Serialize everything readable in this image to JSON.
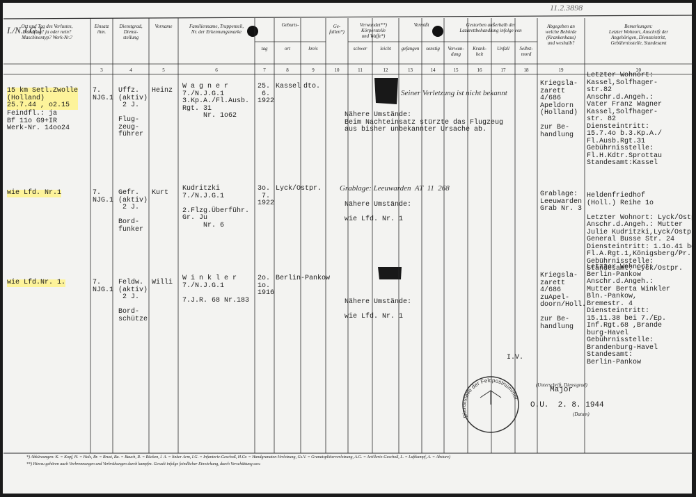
{
  "header": {
    "reference": "11.2.3898",
    "corner": "I./N.J.G.1"
  },
  "header_groups": [
    "Geburts-",
    "Verwundet**)\nKörperstelle\nund Waffe*)",
    "Vermißt",
    "Gestorben außerhalb der\nLazarettbehandlung infolge von"
  ],
  "columns": [
    {
      "label": "Ort und Tag des Verlustes,\nFeindflug? ja oder nein?\nMaschinentyp? Werk-Nr.?"
    },
    {
      "label": "Einsatz\nihm.",
      "number": "3"
    },
    {
      "label": "Dienstgrad,\nDienst-\nstellung",
      "number": "4"
    },
    {
      "label": "Vorname",
      "number": "5"
    },
    {
      "label": "Familienname, Truppenteil,\nNr. der Erkennungsmarke",
      "number": "6"
    },
    {
      "label": "tag",
      "number": "7"
    },
    {
      "label": "ort",
      "number": "8"
    },
    {
      "label": "kreis",
      "number": "9"
    },
    {
      "label": "Ge-\nfallen*)",
      "number": "10"
    },
    {
      "label": "schwer",
      "number": "11"
    },
    {
      "label": "leicht",
      "number": "12"
    },
    {
      "label": "gefangen",
      "number": "13"
    },
    {
      "label": "sonstig",
      "number": "14"
    },
    {
      "label": "Verwun-\ndung",
      "number": "15"
    },
    {
      "label": "Krank-\nheit",
      "number": "16"
    },
    {
      "label": "Unfall",
      "number": "17"
    },
    {
      "label": "Selbst-\nmord",
      "number": "18"
    },
    {
      "label": "Abgegeben an\nwelche Behörde\n(Krankenhaus)\nund weshalb?",
      "number": "19"
    },
    {
      "label": "Bemerkungen:\nLetzter Wohnort, Anschrift der\nAngehörigen, Diensteintritt,\nGebührnisstelle, Standesamt",
      "number": "20"
    }
  ],
  "rows": [
    {
      "loss_place": "15 km Setl.Zwolle\n(Holland)\n25.7.44 , o2.15",
      "loss_details": "Feindfl.: ja\nBf 11o G9+IR\nWerk-Nr. 14oo24",
      "unit": "7.\nNJG.1",
      "rank": "Uffz.\n(aktiv)\n 2 J.\n\nFlug-\nzeug-\nführer",
      "first_name": "Heinz",
      "surname": "W a g n e r\n7./N.J.G.1\n3.Kp.A./Fl.Ausb.\nRgt. 31\n     Nr. 1o62",
      "birth_date": "25.\n 6.\n1922",
      "birth_place": "Kassel",
      "birth_district": "dto.",
      "handwritten": "Seiner Verletzung ist nicht bekannt",
      "circumstances": "Nähere Umstände:\nBeim Nachteinsatz stürzte das Flugzeug\naus bisher unbekannter Ursache ab.",
      "authority": "Kriegsla-\nzarett\n4/686\nApeldorn\n(Holland)\n\nzur Be-\nhandlung",
      "remarks": "Letzter Wohnort:\nKassel,Solfhager-\nstr.82\nAnschr.d.Angeh.:\nVater Franz Wagner\nKassel,Solfhager-\nstr. 82\nDiensteintritt:\n15.7.4o b.3.Kp.A./\nFl.Ausb.Rgt.31\nGebührnisstelle:\nFl.H.Kdtr.Sprottau\nStandesamt:Kassel"
    },
    {
      "loss_place": "wie Lfd. Nr.1",
      "unit": "7.\nNJG.1",
      "rank": "Gefr.\n(aktiv)\n 2 J.\n\nBord-\nfunker",
      "first_name": "Kurt",
      "surname": "Kudritzki\n7./N.J.G.1\n\n2.Flzg.Überführ.\nGr. Ju\n     Nr. 6",
      "birth_date": "3o.\n 7.\n1922",
      "birth_place": "Lyck/Ostpr.",
      "handwritten": "Grablage: Leeuwarden  AT  11  268",
      "circumstances": "Nähere Umstände:\n\nwie Lfd. Nr. 1",
      "authority": "Grablage:\nLeeuwarden\nGrab Nr. 3",
      "remarks": "Heldenfriedhof\n(Holl.) Reihe 1o\n\nLetzter Wohnort: Lyck/Ostpr.\nAnschr.d.Angeh.: Mutter\nJulie Kudritzki,Lyck/Ostpr.\nGeneral Busse Str. 24\nDiensteintritt: 1.1o.41 bei\nFl.A.Rgt.1,Königsberg/Pr.\nGebührnisstelle:\nStandesamt: Lyck/Ostpr."
    },
    {
      "loss_place": "wie Lfd.Nr. 1.",
      "unit": "7.\nNJG.1",
      "rank": "Feldw.\n(aktiv)\n 2 J.\n\nBord-\nschütze",
      "first_name": "Willi",
      "surname": "W i n k l e r\n7./N.J.G.1\n\n7.J.R. 68 Nr.183",
      "birth_date": "2o.\n1o.\n1916",
      "birth_place": "Berlin-Pankow",
      "circumstances": "Nähere Umstände:\n\nwie Lfd. Nr. 1",
      "authority": "Kriegsla-\nzarett\n4/686\nzuApel-\ndoorn/Holl.\n\nzur Be-\nhandlung",
      "remarks": "Letzter Wohnort:\nBerlin-Pankow\nAnschr.d.Angeh.:\nMutter Berta Winkler\nBln.-Pankow,\nBremestr. 4\nDiensteintritt:\n15.11.38 bei 7./Ep.\nInf.Rgt.68 ,Brande\nburg-Havel\nGebührnisstelle:\nBrandenburg-Havel\nStandesamt:\nBerlin-Pankow"
    }
  ],
  "signature": {
    "proxy": "I.V.",
    "rank": "Major",
    "caption": "(Unterschrift, Dienstgrad)",
    "date": "O.U.  2. 8. 1944",
    "date_caption": "(Datum)",
    "stamp": "Dienststelle der Feldpostnummer"
  },
  "footnotes": [
    "*) Abkürzungen: K. = Kopf, H. = Hals, Br. = Brust, Ba. = Bauch, R. = Rücken, l. A. = linker Arm, I.G. = Infanterie-Geschoß, H.Gr. = Handgranaten-Verletzung, Gs.V. = Granatsplitterverletzung, A.G. = Artillerie-Geschoß, L. = Luftkampf, A. = Absturz)",
    "**) Hierzu gehören auch Verbrennungen und Verbrühungen durch kampfm. Gewalt infolge feindlicher Einwirkung, durch Verschüttung usw."
  ]
}
